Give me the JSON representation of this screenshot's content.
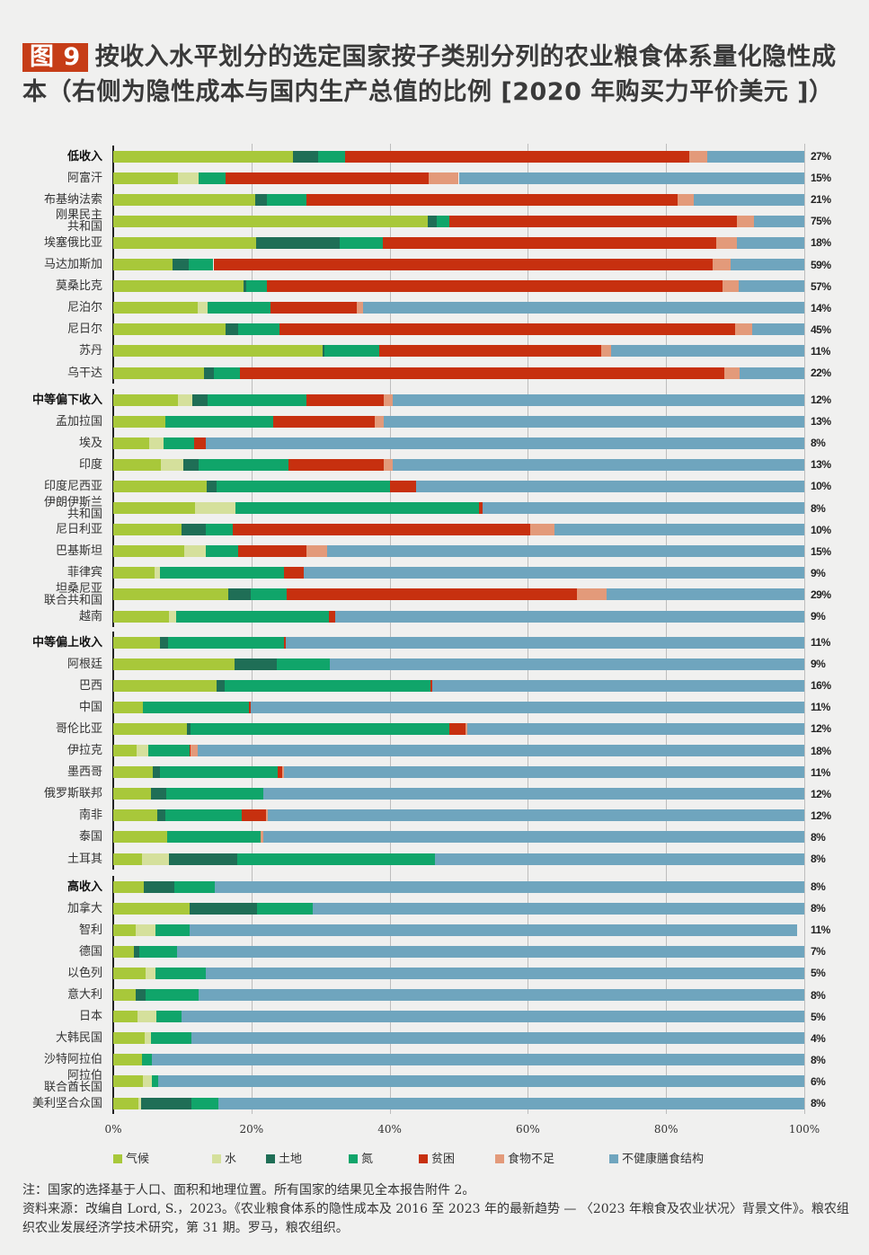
{
  "title": {
    "badge": "图 9",
    "text": "按收入水平划分的选定国家按子类别分列的农业粮食体系量化隐性成本（右侧为隐性成本与国内生产总值的比例 [2020 年购买力平价美元 ]）"
  },
  "chart_data": {
    "type": "bar",
    "orientation": "horizontal",
    "stacked": true,
    "normalized": true,
    "xlim": [
      0,
      100
    ],
    "x_ticks": [
      "0%",
      "20%",
      "40%",
      "60%",
      "80%",
      "100%"
    ],
    "grid": true,
    "legend_position": "bottom",
    "series": [
      {
        "name": "气候",
        "color": "#a8c83a"
      },
      {
        "name": "水",
        "color": "#d5e09c"
      },
      {
        "name": "土地",
        "color": "#1f6e56"
      },
      {
        "name": "氮",
        "color": "#10a56a"
      },
      {
        "name": "贫困",
        "color": "#c7300f"
      },
      {
        "name": "食物不足",
        "color": "#e39a7a"
      },
      {
        "name": "不健康膳食结构",
        "color": "#6fa5be"
      }
    ],
    "groups": [
      {
        "rows": [
          {
            "label": "低收入",
            "group_header": true,
            "values": [
              26.0,
              0,
              3.6,
              4.0,
              49.8,
              2.6,
              14.0
            ],
            "gdp_share": "27%"
          },
          {
            "label": "阿富汗",
            "values": [
              9.4,
              3.0,
              0,
              3.8,
              29.5,
              4.3,
              50.0
            ],
            "gdp_share": "15%"
          },
          {
            "label": "布基纳法索",
            "values": [
              20.5,
              0,
              1.8,
              5.6,
              53.8,
              2.3,
              16.0
            ],
            "gdp_share": "21%"
          },
          {
            "label": "刚果民主\n共和国",
            "values": [
              45.5,
              0,
              1.3,
              1.8,
              41.6,
              2.5,
              7.3
            ],
            "gdp_share": "75%"
          },
          {
            "label": "埃塞俄比亚",
            "values": [
              20.7,
              0,
              12.1,
              6.2,
              48.2,
              3.0,
              9.8
            ],
            "gdp_share": "18%"
          },
          {
            "label": "马达加斯加",
            "values": [
              8.6,
              0,
              2.3,
              3.6,
              72.3,
              2.5,
              10.7
            ],
            "gdp_share": "59%"
          },
          {
            "label": "莫桑比克",
            "values": [
              18.9,
              0,
              0.3,
              3.1,
              65.9,
              2.3,
              9.5
            ],
            "gdp_share": "57%"
          },
          {
            "label": "尼泊尔",
            "values": [
              12.2,
              1.4,
              0,
              9.2,
              12.5,
              0.9,
              63.8
            ],
            "gdp_share": "14%"
          },
          {
            "label": "尼日尔",
            "values": [
              16.3,
              0,
              1.8,
              6.0,
              65.9,
              2.5,
              7.5
            ],
            "gdp_share": "45%"
          },
          {
            "label": "苏丹",
            "values": [
              30.3,
              0,
              0.3,
              7.9,
              32.1,
              1.4,
              28.0
            ],
            "gdp_share": "11%"
          },
          {
            "label": "乌干达",
            "values": [
              13.1,
              0,
              1.4,
              3.9,
              70.0,
              2.3,
              9.3
            ],
            "gdp_share": "22%"
          }
        ]
      },
      {
        "rows": [
          {
            "label": "中等偏下收入",
            "group_header": true,
            "values": [
              9.4,
              2.0,
              2.3,
              14.3,
              11.2,
              1.2,
              59.6
            ],
            "gdp_share": "12%"
          },
          {
            "label": "孟加拉国",
            "values": [
              7.5,
              0,
              0,
              15.7,
              14.7,
              1.3,
              60.8
            ],
            "gdp_share": "13%"
          },
          {
            "label": "埃及",
            "values": [
              5.2,
              2.1,
              0,
              4.4,
              1.7,
              0,
              86.6
            ],
            "gdp_share": "8%"
          },
          {
            "label": "印度",
            "values": [
              6.9,
              3.3,
              2.2,
              12.9,
              13.9,
              1.3,
              59.5
            ],
            "gdp_share": "13%"
          },
          {
            "label": "印度尼西亚",
            "values": [
              13.5,
              0,
              1.4,
              25.1,
              3.8,
              0,
              56.2
            ],
            "gdp_share": "10%"
          },
          {
            "label": "伊朗伊斯兰\n共和国",
            "values": [
              11.8,
              5.9,
              0,
              35.2,
              0.5,
              0,
              46.6
            ],
            "gdp_share": "8%"
          },
          {
            "label": "尼日利亚",
            "values": [
              9.9,
              0,
              3.5,
              3.9,
              43.0,
              3.5,
              36.2
            ],
            "gdp_share": "10%"
          },
          {
            "label": "巴基斯坦",
            "values": [
              10.3,
              3.1,
              0,
              4.7,
              9.9,
              3.0,
              69.0
            ],
            "gdp_share": "15%"
          },
          {
            "label": "菲律宾",
            "values": [
              6.0,
              0.8,
              0,
              17.9,
              2.9,
              0,
              72.4
            ],
            "gdp_share": "9%"
          },
          {
            "label": "坦桑尼亚\n联合共和国",
            "values": [
              16.6,
              0,
              3.3,
              5.2,
              42.0,
              4.3,
              28.6
            ],
            "gdp_share": "29%"
          },
          {
            "label": "越南",
            "values": [
              8.1,
              1.0,
              0,
              22.1,
              0.9,
              0,
              67.9
            ],
            "gdp_share": "9%"
          }
        ]
      },
      {
        "rows": [
          {
            "label": "中等偏上收入",
            "group_header": true,
            "values": [
              6.7,
              0,
              1.2,
              16.8,
              0.3,
              0,
              75.0
            ],
            "gdp_share": "11%"
          },
          {
            "label": "阿根廷",
            "values": [
              17.6,
              0,
              6.1,
              7.7,
              0,
              0,
              68.6
            ],
            "gdp_share": "9%"
          },
          {
            "label": "巴西",
            "values": [
              14.9,
              0,
              1.2,
              29.8,
              0.2,
              0,
              53.9
            ],
            "gdp_share": "16%"
          },
          {
            "label": "中国",
            "values": [
              4.3,
              0,
              0,
              15.4,
              0.2,
              0,
              80.1
            ],
            "gdp_share": "11%"
          },
          {
            "label": "哥伦比亚",
            "values": [
              10.6,
              0,
              0.6,
              37.4,
              2.4,
              0.3,
              48.7
            ],
            "gdp_share": "12%"
          },
          {
            "label": "伊拉克",
            "values": [
              3.4,
              1.7,
              0,
              5.9,
              0.2,
              1.0,
              87.8
            ],
            "gdp_share": "18%"
          },
          {
            "label": "墨西哥",
            "values": [
              5.7,
              0,
              1.0,
              17.1,
              0.7,
              0.2,
              75.3
            ],
            "gdp_share": "11%"
          },
          {
            "label": "俄罗斯联邦",
            "values": [
              5.5,
              0,
              2.2,
              14.0,
              0,
              0,
              78.3
            ],
            "gdp_share": "12%"
          },
          {
            "label": "南非",
            "values": [
              6.4,
              0,
              1.2,
              11.0,
              3.5,
              0.3,
              77.6
            ],
            "gdp_share": "12%"
          },
          {
            "label": "泰国",
            "values": [
              7.8,
              0,
              0,
              13.5,
              0,
              0.4,
              78.3
            ],
            "gdp_share": "8%"
          },
          {
            "label": "土耳其",
            "values": [
              4.2,
              3.8,
              9.9,
              28.6,
              0,
              0,
              53.5
            ],
            "gdp_share": "8%"
          }
        ]
      },
      {
        "rows": [
          {
            "label": "高收入",
            "group_header": true,
            "values": [
              4.4,
              0,
              4.4,
              5.9,
              0,
              0,
              85.3
            ],
            "gdp_share": "8%"
          },
          {
            "label": "加拿大",
            "values": [
              11.1,
              0,
              9.7,
              8.1,
              0,
              0,
              71.1
            ],
            "gdp_share": "8%"
          },
          {
            "label": "智利",
            "values": [
              3.2,
              2.9,
              0,
              5.0,
              0,
              0,
              87.9
            ],
            "gdp_share": "11%"
          },
          {
            "label": "德国",
            "values": [
              3.0,
              0,
              0.8,
              5.4,
              0,
              0,
              90.8
            ],
            "gdp_share": "7%"
          },
          {
            "label": "以色列",
            "values": [
              4.7,
              1.4,
              0,
              7.3,
              0,
              0,
              86.6
            ],
            "gdp_share": "5%"
          },
          {
            "label": "意大利",
            "values": [
              3.2,
              0,
              1.5,
              7.7,
              0,
              0,
              87.6
            ],
            "gdp_share": "8%"
          },
          {
            "label": "日本",
            "values": [
              3.5,
              2.8,
              0,
              3.6,
              0,
              0,
              90.1
            ],
            "gdp_share": "5%"
          },
          {
            "label": "大韩民国",
            "values": [
              4.5,
              0.9,
              0,
              5.9,
              0,
              0,
              88.7
            ],
            "gdp_share": "4%"
          },
          {
            "label": "沙特阿拉伯",
            "values": [
              4.2,
              0,
              0,
              1.4,
              0,
              0,
              94.4
            ],
            "gdp_share": "8%"
          },
          {
            "label": "阿拉伯\n联合酋长国",
            "values": [
              4.3,
              1.3,
              0,
              0.9,
              0,
              0,
              93.5
            ],
            "gdp_share": "6%"
          },
          {
            "label": "美利坚合众国",
            "values": [
              3.7,
              0.3,
              7.3,
              3.9,
              0,
              0,
              84.8
            ],
            "gdp_share": "8%"
          }
        ]
      }
    ]
  },
  "notes": {
    "note": "注：国家的选择基于人口、面积和地理位置。所有国家的结果见全本报告附件 2。",
    "source": "资料来源：改编自 Lord, S.，2023。《农业粮食体系的隐性成本及 2016 至 2023 年的最新趋势 — 〈2023 年粮食及农业状况〉背景文件》。粮农组织农业发展经济学技术研究，第 31 期。罗马，粮农组织。"
  }
}
